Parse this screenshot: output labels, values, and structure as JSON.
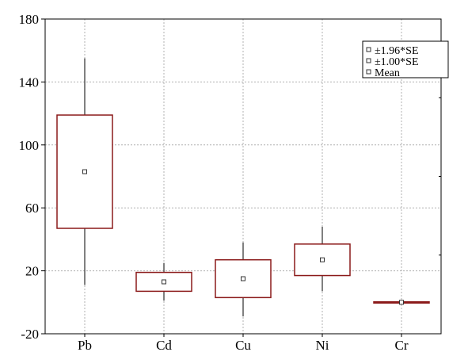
{
  "chart_data": {
    "type": "box",
    "categories": [
      "Pb",
      "Cd",
      "Cu",
      "Ni",
      "Cr"
    ],
    "series": [
      {
        "category": "Pb",
        "mean": 83,
        "box_low": 47,
        "box_high": 119,
        "whisker_low": 11,
        "whisker_high": 155
      },
      {
        "category": "Cd",
        "mean": 13,
        "box_low": 7,
        "box_high": 19,
        "whisker_low": 1,
        "whisker_high": 25
      },
      {
        "category": "Cu",
        "mean": 15,
        "box_low": 3,
        "box_high": 27,
        "whisker_low": -9,
        "whisker_high": 38
      },
      {
        "category": "Ni",
        "mean": 27,
        "box_low": 17,
        "box_high": 37,
        "whisker_low": 7,
        "whisker_high": 48
      },
      {
        "category": "Cr",
        "mean": 0,
        "box_low": -0.3,
        "box_high": 0.3,
        "whisker_low": -0.6,
        "whisker_high": 0.6
      }
    ],
    "ylim": [
      -20,
      180
    ],
    "yticks": [
      -20,
      20,
      60,
      100,
      140,
      180
    ],
    "grid": true,
    "legend_position": "top-right",
    "legend": [
      "±1.96*SE",
      "±1.00*SE",
      "Mean"
    ],
    "colors": {
      "box": "#8b1a1a",
      "whisker": "#555555",
      "grid": "#b0b0b0",
      "axis": "#000000"
    }
  }
}
